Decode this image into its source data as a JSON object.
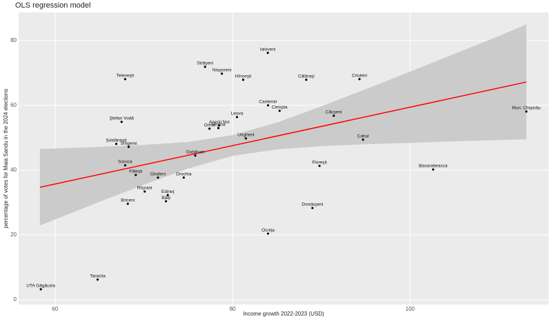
{
  "chart_data": {
    "type": "scatter",
    "title": "OLS regression model",
    "x_label": "Income growth 2022-2023 (USD)",
    "y_label": "percentage of votes for Maia Sandu in the 2024 elections",
    "xlim": [
      55.9,
      115.6
    ],
    "ylim": [
      -1.5,
      88.7
    ],
    "xticks": [
      60,
      80,
      100
    ],
    "yticks": [
      0,
      20,
      40,
      60,
      80
    ],
    "grid": true,
    "point_color": "#000000",
    "labels": [
      "Ialoveni",
      "Străşeni",
      "Nisporeni",
      "Hînceşti",
      "Călăraşi",
      "Criuleni",
      "Teleneşti",
      "Cantemir",
      "Cimişlia",
      "Leova",
      "Anenii Noi",
      "Orhei",
      "Rezina",
      "Căuşeni",
      "Mun. Chişinău",
      "Ştefan Vodă",
      "Ungheni",
      "Cahul",
      "Şoldăneşti",
      "Sîngerei",
      "Dubăsari",
      "Soroca",
      "Floreşti",
      "Basarabeasca",
      "Făleşti",
      "Glodeni",
      "Drochia",
      "Rîşcani",
      "Edineţ",
      "Briceni",
      "Bălţi",
      "Donduşeni",
      "Ocniţa",
      "Taraclia",
      "UTA Găgăuzia"
    ],
    "x": [
      83.97,
      76.9,
      78.8,
      81.2,
      88.3,
      94.3,
      67.9,
      84.0,
      85.3,
      80.5,
      78.5,
      77.4,
      78.4,
      91.4,
      113.1,
      67.5,
      81.5,
      94.7,
      66.9,
      68.3,
      75.8,
      67.9,
      89.8,
      102.6,
      69.1,
      71.6,
      74.5,
      70.1,
      72.7,
      68.2,
      72.5,
      89.0,
      84.0,
      64.8,
      58.4
    ],
    "y": [
      76.2,
      71.9,
      69.8,
      67.9,
      67.9,
      68.1,
      68.1,
      60.0,
      58.3,
      56.4,
      53.8,
      52.8,
      53.0,
      56.8,
      58.1,
      54.9,
      49.8,
      49.4,
      48.1,
      47.2,
      44.5,
      41.5,
      41.3,
      40.2,
      38.5,
      37.7,
      37.7,
      33.4,
      32.3,
      29.6,
      30.4,
      28.3,
      20.4,
      6.2,
      3.2
    ],
    "fit": {
      "color": "#ff0000",
      "x": [
        58.3,
        113.1
      ],
      "y": [
        34.7,
        67.2
      ]
    },
    "band": {
      "color": "#c8c8c8",
      "x": [
        58.3,
        65,
        70,
        75,
        80,
        85,
        90,
        95,
        100,
        105,
        110,
        113.1
      ],
      "lower": [
        22.9,
        30.2,
        35.5,
        40.5,
        44.4,
        46.4,
        47.4,
        48.0,
        48.4,
        48.9,
        49.3,
        49.5
      ],
      "upper": [
        46.5,
        47.2,
        47.8,
        48.7,
        50.8,
        54.7,
        59.7,
        65.0,
        70.4,
        75.9,
        81.4,
        85.0
      ]
    }
  }
}
